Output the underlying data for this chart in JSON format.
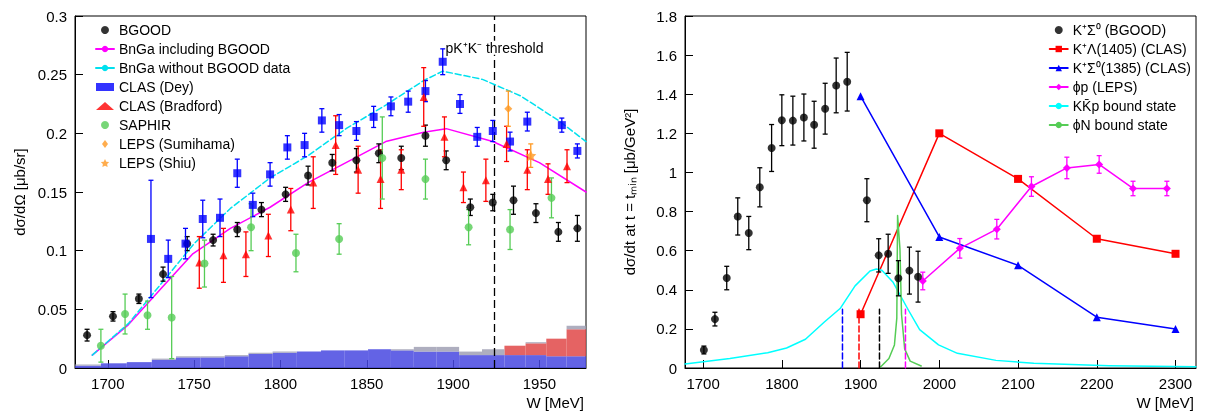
{
  "chart_data": [
    {
      "type": "scatter",
      "ylabel": "dσ/dΩ [μb/sr]",
      "xlabel": "W [MeV]",
      "xlim": [
        1681,
        1977
      ],
      "xticks": [
        1700,
        1750,
        1800,
        1850,
        1900,
        1950
      ],
      "ylim": [
        0,
        0.3
      ],
      "yticks": [
        0,
        0.05,
        0.1,
        0.15,
        0.2,
        0.25,
        0.3
      ],
      "legend": "top left",
      "grid": false,
      "stacked": true,
      "x": [
        1688.5,
        1703.5,
        1718.5,
        1732.5,
        1746.5,
        1761,
        1774.5,
        1788.5,
        1802.5,
        1816.5,
        1830.5,
        1844,
        1857.5,
        1870.5,
        1884,
        1897,
        1910,
        1923.5,
        1936,
        1948,
        1960,
        1971.5
      ],
      "series": [
        {
          "type": "bar",
          "color": "#4848e0",
          "values": [
            0.002,
            0.004,
            0.005,
            0.007,
            0.009,
            0.009,
            0.01,
            0.012,
            0.013,
            0.014,
            0.015,
            0.015,
            0.016,
            0.015,
            0.014,
            0.014,
            0.011,
            0.011,
            0.011,
            0.011,
            0.01,
            0.01
          ]
        },
        {
          "type": "bar",
          "color": "#e04848",
          "values": [
            null,
            null,
            null,
            null,
            null,
            null,
            null,
            null,
            null,
            null,
            null,
            null,
            null,
            null,
            null,
            null,
            null,
            null,
            0.008,
            0.01,
            0.015,
            0.023
          ]
        },
        {
          "type": "bar",
          "color": "#a0a0b4",
          "values": [
            0.001,
            null,
            null,
            0.001,
            0.001,
            0.001,
            0.001,
            0.001,
            0.001,
            null,
            null,
            null,
            null,
            0.001,
            0.004,
            0.004,
            0.003,
            0.005,
            null,
            0.001,
            null,
            0.003
          ]
        },
        {
          "name": "BGOOD",
          "color": "#000000",
          "marker": "circle",
          "x": [
            1688,
            1703,
            1718,
            1732,
            1746,
            1761,
            1775,
            1789,
            1803,
            1816,
            1830,
            1844,
            1857,
            1870,
            1884,
            1896,
            1910,
            1923,
            1935,
            1948,
            1961,
            1972
          ],
          "values": [
            0.028,
            0.044,
            0.059,
            0.08,
            0.106,
            0.109,
            0.118,
            0.135,
            0.148,
            0.164,
            0.175,
            0.177,
            0.183,
            0.179,
            0.198,
            0.177,
            0.137,
            0.141,
            0.143,
            0.132,
            0.116,
            0.119
          ],
          "errors": [
            0.005,
            0.004,
            0.004,
            0.006,
            0.006,
            0.005,
            0.006,
            0.006,
            0.006,
            0.008,
            0.007,
            0.01,
            0.008,
            0.01,
            0.009,
            0.008,
            0.007,
            0.007,
            0.012,
            0.008,
            0.008,
            0.011
          ]
        },
        {
          "name": "BnGa including BGOOD",
          "type": "line",
          "color": "#ff00ff",
          "marker": "none",
          "line_style": "solid",
          "x": [
            1691,
            1712,
            1731,
            1749,
            1771,
            1794,
            1816,
            1838,
            1861,
            1883,
            1896,
            1923,
            1950,
            1977
          ],
          "values": [
            0.011,
            0.037,
            0.068,
            0.097,
            0.119,
            0.137,
            0.158,
            0.175,
            0.193,
            0.201,
            0.204,
            0.193,
            0.175,
            0.15
          ]
        },
        {
          "name": "BnGa without BGOOD data",
          "type": "line",
          "color": "#00e0ee",
          "marker": "none",
          "line_style": "dashed",
          "x": [
            1691,
            1712,
            1731,
            1750,
            1771,
            1794,
            1816,
            1838,
            1861,
            1883,
            1894,
            1917,
            1939,
            1961,
            1977
          ],
          "values": [
            0.011,
            0.038,
            0.072,
            0.106,
            0.136,
            0.162,
            0.181,
            0.204,
            0.224,
            0.245,
            0.253,
            0.246,
            0.232,
            0.211,
            0.193
          ]
        },
        {
          "name": "CLAS (Dey)",
          "color": "#0000ff",
          "marker": "square",
          "x": [
            1725,
            1735,
            1745,
            1755,
            1765,
            1775,
            1784,
            1794,
            1804,
            1814,
            1824,
            1834,
            1844,
            1854,
            1864,
            1874,
            1884,
            1894,
            1904,
            1914,
            1923,
            1933,
            1943,
            1963,
            1972
          ],
          "values": [
            0.11,
            0.093,
            0.106,
            0.127,
            0.128,
            0.166,
            0.139,
            0.165,
            0.188,
            0.19,
            0.211,
            0.207,
            0.202,
            0.214,
            0.223,
            0.227,
            0.236,
            0.261,
            0.225,
            0.197,
            0.202,
            0.193,
            0.21,
            0.207,
            0.185
          ],
          "errors": [
            0.05,
            0.016,
            0.013,
            0.016,
            0.016,
            0.012,
            0.01,
            0.01,
            0.01,
            0.01,
            0.01,
            0.009,
            0.008,
            0.009,
            0.008,
            0.009,
            0.009,
            0.011,
            0.008,
            0.008,
            0.009,
            0.008,
            0.008,
            0.006,
            0.006
          ]
        },
        {
          "name": "CLAS (Bradford)",
          "color": "#ff0000",
          "marker": "triangle",
          "x": [
            1753,
            1767,
            1780,
            1793,
            1806,
            1819,
            1832,
            1845,
            1858,
            1870,
            1883,
            1895,
            1906,
            1919,
            1931,
            1943,
            1955,
            1966
          ],
          "values": [
            0.09,
            0.096,
            0.097,
            0.113,
            0.135,
            0.158,
            0.19,
            0.169,
            0.161,
            0.169,
            0.231,
            0.197,
            0.154,
            0.16,
            0.191,
            0.169,
            0.161,
            0.172
          ],
          "errors": [
            0.022,
            0.023,
            0.019,
            0.018,
            0.018,
            0.022,
            0.025,
            0.02,
            0.025,
            0.017,
            0.025,
            0.017,
            0.013,
            0.018,
            0.015,
            0.017,
            0.013,
            0.014
          ]
        },
        {
          "name": "SAPHIR",
          "color": "#55cc55",
          "marker": "circle",
          "x": [
            1696,
            1710,
            1723,
            1737,
            1756,
            1783,
            1809,
            1834,
            1859,
            1884,
            1909,
            1933,
            1957
          ],
          "values": [
            0.019,
            0.046,
            0.045,
            0.043,
            0.089,
            0.12,
            0.098,
            0.11,
            0.179,
            0.161,
            0.12,
            0.118,
            0.145
          ],
          "errors": [
            0.014,
            0.017,
            0.012,
            0.035,
            0.02,
            0.02,
            0.016,
            0.013,
            0.035,
            0.017,
            0.015,
            0.017,
            0.017
          ]
        },
        {
          "name": "LEPS (Sumihama)",
          "color": "#ff9922",
          "marker": "diamond",
          "x": [
            1932
          ],
          "values": [
            0.221
          ],
          "errors": [
            0.015
          ]
        },
        {
          "name": "LEPS (Shiu)",
          "color": "#ff9922",
          "marker": "star",
          "x": [
            1945
          ],
          "values": [
            0.181
          ],
          "errors": [
            0.01
          ]
        }
      ],
      "ref_lines": [
        {
          "axis": "x",
          "value": 1924,
          "label": "pK⁺K⁻ threshold",
          "color": "#000000",
          "line_style": "dashed"
        }
      ]
    },
    {
      "type": "line",
      "ylabel": "dσ/dt at t = tₘᵢₙ [μb/GeV²]",
      "xlabel": "W [MeV]",
      "xlim": [
        1677,
        2326
      ],
      "xticks": [
        1700,
        1800,
        1900,
        2000,
        2100,
        2200,
        2300
      ],
      "ylim": [
        0,
        1.8
      ],
      "yticks": [
        0,
        0.2,
        0.4,
        0.6,
        0.8,
        1,
        1.2,
        1.4,
        1.6,
        1.8
      ],
      "legend": "top right",
      "grid": false,
      "series": [
        {
          "name": "K⁺Σ⁰ (BGOOD)",
          "type": "scatter",
          "color": "#000000",
          "marker": "circle",
          "x": [
            1701,
            1715,
            1730,
            1744,
            1758,
            1772,
            1787,
            1800,
            1814,
            1828,
            1841,
            1855,
            1869,
            1883,
            1908,
            1923,
            1935,
            1948,
            1962,
            1973
          ],
          "values": [
            0.092,
            0.25,
            0.46,
            0.775,
            0.69,
            0.924,
            1.125,
            1.267,
            1.265,
            1.281,
            1.244,
            1.326,
            1.445,
            1.464,
            0.858,
            0.576,
            0.584,
            0.459,
            0.498,
            0.467
          ],
          "errors": [
            0.02,
            0.035,
            0.06,
            0.095,
            0.085,
            0.1,
            0.12,
            0.13,
            0.125,
            0.12,
            0.12,
            0.13,
            0.14,
            0.15,
            0.11,
            0.085,
            0.1,
            0.09,
            0.12,
            0.13
          ]
        },
        {
          "name": "K⁺Λ(1405) (CLAS)",
          "color": "#ff0000",
          "marker": "square",
          "line_style": "solid",
          "x": [
            1900,
            2000,
            2100,
            2200,
            2300
          ],
          "values": [
            0.275,
            1.2,
            0.967,
            0.661,
            0.584
          ]
        },
        {
          "name": "K⁺Σ⁰(1385) (CLAS)",
          "color": "#0000ff",
          "marker": "triangle",
          "line_style": "solid",
          "x": [
            1900,
            2000,
            2100,
            2200,
            2300
          ],
          "values": [
            1.39,
            0.67,
            0.525,
            0.26,
            0.2
          ]
        },
        {
          "name": "ϕp (LEPS)",
          "color": "#ff00ff",
          "marker": "diamond",
          "line_style": "solid",
          "x": [
            1979,
            2026,
            2073,
            2117,
            2162,
            2203,
            2246,
            2289
          ],
          "values": [
            0.445,
            0.612,
            0.71,
            0.928,
            1.023,
            1.041,
            0.918,
            0.918
          ],
          "errors": [
            0.045,
            0.05,
            0.05,
            0.05,
            0.055,
            0.045,
            0.037,
            0.037
          ]
        },
        {
          "name": "KK̄p bound state",
          "color": "#00ffff",
          "marker": "none",
          "line_style": "solid",
          "x": [
            1677,
            1734,
            1782,
            1806,
            1830,
            1854,
            1874,
            1893,
            1912,
            1920,
            1927,
            1941,
            1961,
            1975,
            1999,
            2023,
            2072,
            2120,
            2216,
            2326
          ],
          "values": [
            0.02,
            0.049,
            0.078,
            0.102,
            0.147,
            0.235,
            0.304,
            0.42,
            0.496,
            0.506,
            0.5,
            0.44,
            0.294,
            0.196,
            0.118,
            0.075,
            0.039,
            0.024,
            0.012,
            0.006
          ]
        },
        {
          "name": "ϕN bound state",
          "color": "#55cc55",
          "marker": "none",
          "line_style": "solid",
          "x": [
            1925,
            1936,
            1943,
            1946,
            1947,
            1950,
            1952,
            1956,
            1963,
            1977
          ],
          "values": [
            0.004,
            0.049,
            0.118,
            0.255,
            0.78,
            0.608,
            0.275,
            0.098,
            0.035,
            0.01
          ]
        },
        {
          "color": "#0000ff",
          "marker": "none",
          "line_style": "dashed",
          "x": [
            1877,
            1877
          ],
          "values": [
            0,
            0.3
          ]
        },
        {
          "color": "#ff0000",
          "marker": "none",
          "line_style": "dashed",
          "x": [
            1898,
            1898
          ],
          "values": [
            0,
            0.3
          ]
        },
        {
          "color": "#000000",
          "marker": "none",
          "line_style": "dashed",
          "x": [
            1924,
            1924
          ],
          "values": [
            0,
            0.3
          ]
        },
        {
          "color": "#ff00ff",
          "marker": "none",
          "line_style": "dashed",
          "x": [
            1957,
            1957
          ],
          "values": [
            0,
            0.3
          ]
        }
      ]
    }
  ]
}
